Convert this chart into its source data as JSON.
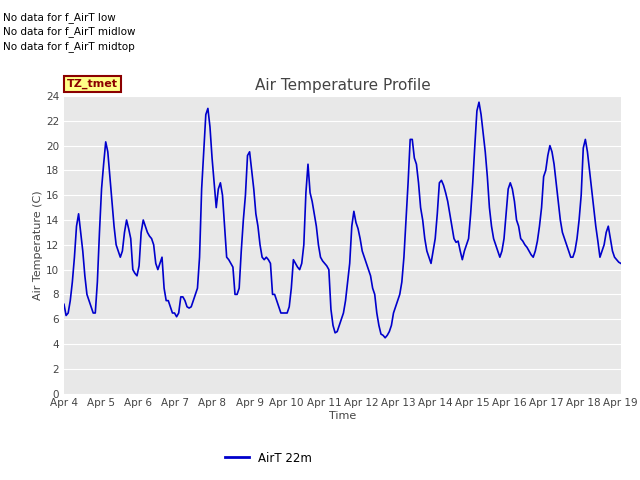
{
  "title": "Air Temperature Profile",
  "xlabel": "Time",
  "ylabel": "Air Temperature (C)",
  "ylim": [
    0,
    24
  ],
  "yticks": [
    0,
    2,
    4,
    6,
    8,
    10,
    12,
    14,
    16,
    18,
    20,
    22,
    24
  ],
  "xtick_labels": [
    "Apr 4",
    "Apr 5",
    "Apr 6",
    "Apr 7",
    "Apr 8",
    "Apr 9",
    "Apr 10",
    "Apr 11",
    "Apr 12",
    "Apr 13",
    "Apr 14",
    "Apr 15",
    "Apr 16",
    "Apr 17",
    "Apr 18",
    "Apr 19"
  ],
  "line_color": "#0000cc",
  "line_width": 1.2,
  "plot_bg_color": "#e8e8e8",
  "fig_bg_color": "#ffffff",
  "legend_label": "AirT 22m",
  "no_data_texts": [
    "No data for f_AirT low",
    "No data for f_AirT midlow",
    "No data for f_AirT midtop"
  ],
  "tz_label": "TZ_tmet",
  "grid_color": "#ffffff",
  "title_fontsize": 11,
  "axis_label_fontsize": 8,
  "tick_fontsize": 7.5,
  "nodata_fontsize": 7.5,
  "y_values": [
    7.2,
    6.3,
    6.5,
    7.5,
    9.0,
    11.0,
    13.5,
    14.5,
    13.0,
    11.5,
    9.5,
    8.0,
    7.5,
    7.0,
    6.5,
    6.5,
    9.0,
    13.0,
    16.5,
    18.5,
    20.3,
    19.5,
    17.5,
    15.5,
    13.5,
    12.0,
    11.5,
    11.0,
    11.5,
    13.0,
    14.0,
    13.3,
    12.5,
    10.0,
    9.7,
    9.5,
    10.3,
    13.0,
    14.0,
    13.5,
    13.0,
    12.7,
    12.5,
    12.0,
    10.5,
    10.0,
    10.5,
    11.0,
    8.5,
    7.5,
    7.5,
    7.0,
    6.5,
    6.5,
    6.2,
    6.5,
    7.8,
    7.8,
    7.5,
    7.0,
    6.9,
    7.0,
    7.5,
    8.0,
    8.5,
    11.0,
    16.5,
    19.5,
    22.5,
    23.0,
    21.5,
    19.0,
    17.0,
    15.0,
    16.5,
    17.0,
    16.0,
    13.5,
    11.0,
    10.8,
    10.5,
    10.2,
    8.0,
    8.0,
    8.5,
    11.5,
    14.0,
    16.0,
    19.2,
    19.5,
    18.0,
    16.5,
    14.5,
    13.5,
    12.0,
    11.0,
    10.8,
    11.0,
    10.8,
    10.5,
    8.0,
    8.0,
    7.5,
    7.0,
    6.5,
    6.5,
    6.5,
    6.5,
    7.0,
    8.5,
    10.8,
    10.5,
    10.2,
    10.0,
    10.5,
    12.0,
    16.2,
    18.5,
    16.2,
    15.5,
    14.5,
    13.5,
    12.0,
    11.0,
    10.7,
    10.5,
    10.3,
    10.0,
    6.8,
    5.5,
    4.9,
    5.0,
    5.5,
    6.0,
    6.5,
    7.5,
    9.0,
    10.5,
    13.5,
    14.7,
    13.8,
    13.3,
    12.5,
    11.5,
    11.0,
    10.5,
    10.0,
    9.5,
    8.5,
    8.0,
    6.5,
    5.5,
    4.8,
    4.7,
    4.5,
    4.7,
    5.0,
    5.5,
    6.5,
    7.0,
    7.5,
    8.0,
    9.0,
    11.0,
    14.0,
    17.0,
    20.5,
    20.5,
    19.0,
    18.5,
    17.0,
    15.0,
    14.0,
    12.5,
    11.5,
    11.0,
    10.5,
    11.5,
    12.5,
    14.5,
    17.0,
    17.2,
    16.8,
    16.2,
    15.5,
    14.5,
    13.5,
    12.5,
    12.2,
    12.3,
    11.5,
    10.8,
    11.5,
    12.0,
    12.5,
    14.5,
    17.0,
    20.0,
    22.8,
    23.5,
    22.5,
    21.0,
    19.5,
    17.5,
    15.0,
    13.5,
    12.5,
    12.0,
    11.5,
    11.0,
    11.5,
    12.5,
    14.5,
    16.5,
    17.0,
    16.5,
    15.5,
    14.0,
    13.5,
    12.5,
    12.3,
    12.0,
    11.8,
    11.5,
    11.2,
    11.0,
    11.5,
    12.3,
    13.5,
    15.0,
    17.5,
    18.0,
    19.2,
    20.0,
    19.5,
    18.5,
    17.0,
    15.5,
    14.0,
    13.0,
    12.5,
    12.0,
    11.5,
    11.0,
    11.0,
    11.5,
    12.5,
    14.0,
    16.0,
    19.8,
    20.5,
    19.5,
    18.0,
    16.5,
    15.0,
    13.5,
    12.3,
    11.0,
    11.5,
    12.0,
    13.0,
    13.5,
    12.5,
    11.5,
    11.0,
    10.8,
    10.6,
    10.5
  ]
}
